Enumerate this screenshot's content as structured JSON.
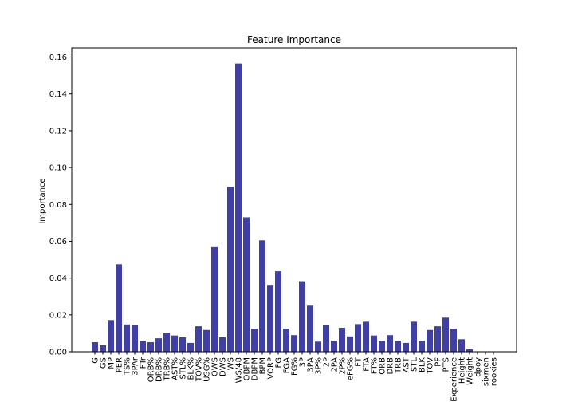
{
  "chart_data": {
    "type": "bar",
    "title": "Feature Importance",
    "xlabel": "",
    "ylabel": "Importance",
    "ylim": [
      0,
      0.165
    ],
    "yticks": [
      0.0,
      0.02,
      0.04,
      0.06,
      0.08,
      0.1,
      0.12,
      0.14,
      0.16
    ],
    "ytick_labels": [
      "0.00",
      "0.02",
      "0.04",
      "0.06",
      "0.08",
      "0.10",
      "0.12",
      "0.14",
      "0.16"
    ],
    "bar_color": "#3f3fa5",
    "grid": false,
    "categories": [
      "G",
      "GS",
      "MP",
      "PER",
      "TS%",
      "3PAr",
      "FTr",
      "ORB%",
      "DRB%",
      "TRB%",
      "AST%",
      "STL%",
      "BLK%",
      "TOV%",
      "USG%",
      "OWS",
      "DWS",
      "WS",
      "WS/48",
      "OBPM",
      "DBPM",
      "BPM",
      "VORP",
      "FG",
      "FGA",
      "FG%",
      "3P",
      "3PA",
      "3P%",
      "2P",
      "2PA",
      "2P%",
      "eFG%",
      "FT",
      "FTA",
      "FT%",
      "ORB",
      "DRB",
      "TRB",
      "AST",
      "STL",
      "BLK",
      "TOV",
      "PF",
      "PTS",
      "Experience",
      "Height",
      "Weight",
      "dpoy",
      "sixmen",
      "rookies"
    ],
    "values": [
      0.0052,
      0.0035,
      0.0172,
      0.0475,
      0.0148,
      0.0143,
      0.006,
      0.0052,
      0.0073,
      0.0103,
      0.0088,
      0.0078,
      0.0048,
      0.0138,
      0.0118,
      0.0568,
      0.0078,
      0.0895,
      0.1565,
      0.073,
      0.0125,
      0.0605,
      0.0363,
      0.0437,
      0.0125,
      0.009,
      0.0383,
      0.025,
      0.0055,
      0.0143,
      0.006,
      0.013,
      0.0083,
      0.015,
      0.0163,
      0.0088,
      0.006,
      0.009,
      0.006,
      0.0048,
      0.0163,
      0.006,
      0.0118,
      0.0138,
      0.0185,
      0.0125,
      0.0068,
      0.0013,
      0.0,
      0.0,
      0.0
    ]
  }
}
